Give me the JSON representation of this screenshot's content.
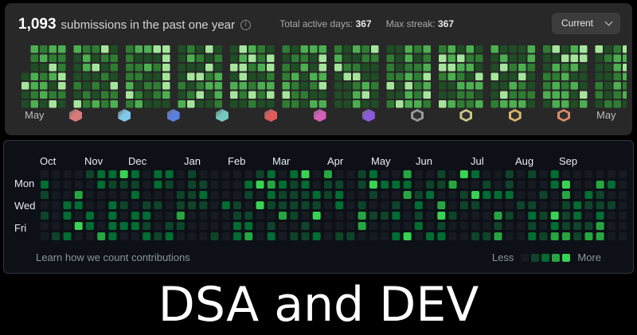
{
  "leetcode": {
    "submission_count": "1,093",
    "caption": "submissions in the past one year",
    "info_icon": "info-icon",
    "stats": [
      {
        "label": "Total active days:",
        "value": "367"
      },
      {
        "label": "Max streak:",
        "value": "367"
      }
    ],
    "period_select": {
      "value": "Current",
      "icon": "chevron-down-icon"
    },
    "month_labels": [
      "May",
      "May"
    ],
    "colors": [
      "#1f4d25",
      "#2e7d32",
      "#4caf50",
      "#a5e59b"
    ],
    "badges": [
      {
        "name": "badge-1",
        "color": "#d97a7a",
        "ring": false
      },
      {
        "name": "badge-2",
        "color": "#7ec8e8",
        "ring": false
      },
      {
        "name": "badge-3",
        "color": "#5b7fe0",
        "ring": false
      },
      {
        "name": "badge-4",
        "color": "#76c9c0",
        "ring": false
      },
      {
        "name": "badge-5",
        "color": "#e05b5b",
        "ring": false
      },
      {
        "name": "badge-6",
        "color": "#d65fb8",
        "ring": false
      },
      {
        "name": "badge-7",
        "color": "#8a5ad8",
        "ring": false
      },
      {
        "name": "badge-8",
        "color": "#9a9a9a",
        "ring": true
      },
      {
        "name": "badge-9",
        "color": "#c9c98a",
        "ring": true
      },
      {
        "name": "badge-10",
        "color": "#d9b86a",
        "ring": true
      },
      {
        "name": "badge-11",
        "color": "#d98a6a",
        "ring": true
      }
    ]
  },
  "github": {
    "months": [
      "Oct",
      "Nov",
      "Dec",
      "Jan",
      "Feb",
      "Mar",
      "Apr",
      "May",
      "Jun",
      "Jul",
      "Aug",
      "Sep"
    ],
    "day_labels": [
      "Mon",
      "Wed",
      "Fri"
    ],
    "learn_link": "Learn how we count contributions",
    "legend": {
      "less": "Less",
      "more": "More"
    },
    "colors": [
      "#161b22",
      "#0e4429",
      "#006d32",
      "#26a641",
      "#39d353"
    ]
  },
  "banner": {
    "title": "DSA and DEV"
  }
}
